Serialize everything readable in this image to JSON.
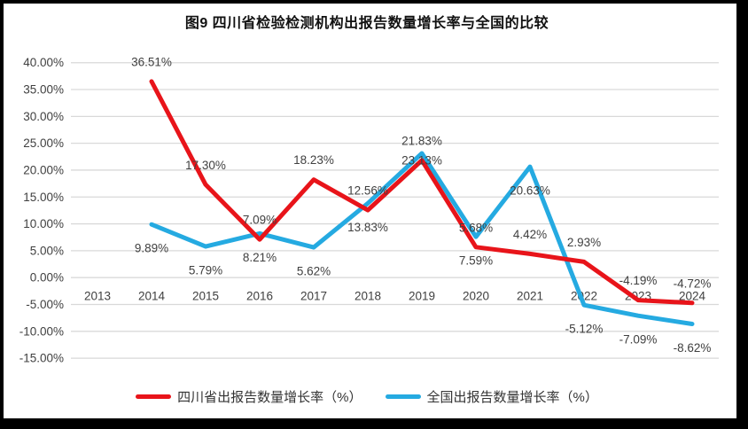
{
  "title": "图9  四川省检验检测机构出报告数量增长率与全国的比较",
  "chart_data": {
    "type": "line",
    "title": "图9  四川省检验检测机构出报告数量增长率与全国的比较",
    "categories": [
      "2013",
      "2014",
      "2015",
      "2016",
      "2017",
      "2018",
      "2019",
      "2020",
      "2021",
      "2022",
      "2023",
      "2024"
    ],
    "series": [
      {
        "name": "四川省出报告数量增长率（%）",
        "color": "#e8141a",
        "data_label_position": "above",
        "values": [
          null,
          36.51,
          17.3,
          7.09,
          18.23,
          12.56,
          21.83,
          5.68,
          4.42,
          2.93,
          -4.19,
          -4.72
        ],
        "data_labels": [
          "36.51%",
          "17.30%",
          "7.09%",
          "18.23%",
          "12.56%",
          "21.83%",
          "5.68%",
          "4.42%",
          "2.93%",
          "-4.19%",
          "-4.72%"
        ]
      },
      {
        "name": "全国出报告数量增长率（%）",
        "color": "#25aae1",
        "data_label_position": "below",
        "values": [
          null,
          9.89,
          5.79,
          8.21,
          5.62,
          13.83,
          23.13,
          7.59,
          20.63,
          -5.12,
          -7.09,
          -8.62
        ],
        "data_labels": [
          "9.89%",
          "5.79%",
          "8.21%",
          "5.62%",
          "13.83%",
          "23.13%",
          "7.59%",
          "20.63%",
          "-5.12%",
          "-7.09%",
          "-8.62%"
        ]
      }
    ],
    "y_axis": {
      "min": -15,
      "max": 40,
      "step": 5,
      "ticks": [
        "40.00%",
        "35.00%",
        "30.00%",
        "25.00%",
        "20.00%",
        "15.00%",
        "10.00%",
        "5.00%",
        "0.00%",
        "-5.00%",
        "-10.00%",
        "-15.00%"
      ]
    },
    "grid": true,
    "colors": {
      "gridline": "#d9d9d9",
      "axis_text": "#404040",
      "data_label_text": "#404040",
      "frame_border": "#000000",
      "background": "#ffffff"
    },
    "legend_position": "bottom"
  }
}
